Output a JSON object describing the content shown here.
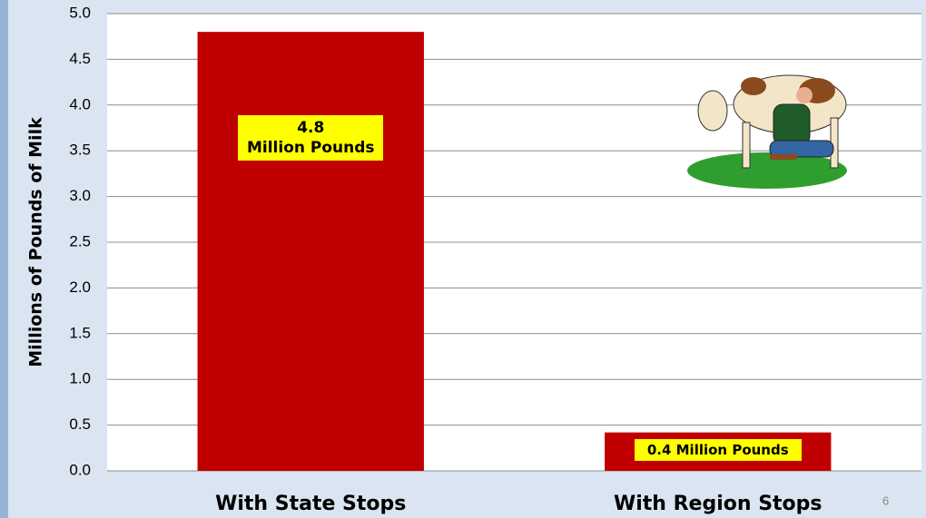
{
  "chart_data": {
    "type": "bar",
    "y_label": "Millions of Pounds of  Milk",
    "categories": [
      "With State Stops",
      "With Region Stops"
    ],
    "values": [
      4.8,
      0.42
    ],
    "value_labels": [
      "4.8 Million Pounds",
      "0.4 Million Pounds"
    ],
    "color": "#c00000",
    "ylim": [
      0,
      5
    ],
    "yticks": [
      {
        "value": 0,
        "label": "0.0"
      },
      {
        "value": 0.5,
        "label": "0.5"
      },
      {
        "value": 1,
        "label": "1.0"
      },
      {
        "value": 1.5,
        "label": "1.5"
      },
      {
        "value": 2,
        "label": "2.0"
      },
      {
        "value": 2.5,
        "label": "2.5"
      },
      {
        "value": 3,
        "label": "3.0"
      },
      {
        "value": 3.5,
        "label": "3.5"
      },
      {
        "value": 4,
        "label": "4.0"
      },
      {
        "value": 4.5,
        "label": "4.5"
      },
      {
        "value": 5,
        "label": "5.0"
      }
    ],
    "grid": true
  },
  "slide_number": "6"
}
